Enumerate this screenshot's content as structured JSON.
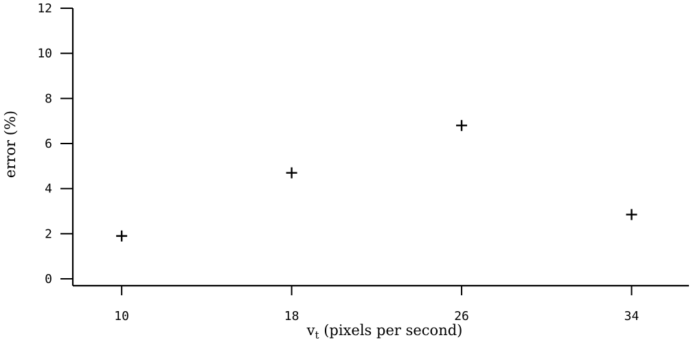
{
  "chart_data": {
    "type": "scatter",
    "title": "",
    "xlabel": "v",
    "xlabel_sub": "t",
    "xlabel_suffix": " (pixels per second)",
    "ylabel": "error (%)",
    "x": [
      10,
      18,
      26,
      34
    ],
    "y": [
      1.9,
      4.7,
      6.8,
      2.85
    ],
    "xticks": [
      "10",
      "18",
      "26",
      "34"
    ],
    "yticks": [
      "0",
      "2",
      "4",
      "6",
      "8",
      "10",
      "12"
    ],
    "xlim": [
      7.7,
      36.7
    ],
    "ylim": [
      0,
      12
    ],
    "marker": "plus",
    "grid": false,
    "color": "#000000"
  }
}
